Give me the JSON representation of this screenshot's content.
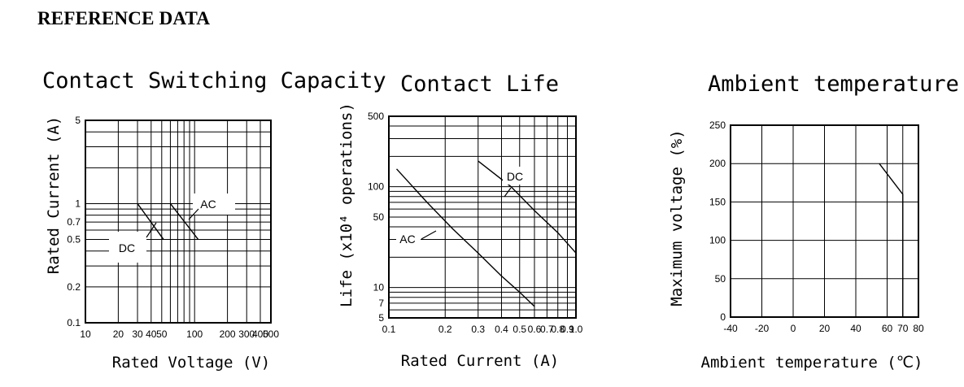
{
  "page": {
    "heading": "REFERENCE DATA"
  },
  "chart_data": [
    {
      "type": "line",
      "title": "Contact Switching Capacity",
      "xlabel": "Rated Voltage   (V)",
      "ylabel": "Rated Current  (A)",
      "xscale": "log",
      "yscale": "log",
      "xlim": [
        10,
        500
      ],
      "ylim": [
        0.1,
        5
      ],
      "x_ticks": [
        10,
        20,
        30,
        40,
        50,
        100,
        200,
        300,
        400,
        500
      ],
      "x_tick_labels": [
        "10",
        "20",
        "30",
        "40",
        "50",
        "100",
        "200",
        "300",
        "400",
        "500"
      ],
      "y_ticks": [
        0.1,
        0.2,
        0.5,
        0.7,
        1,
        5
      ],
      "y_tick_labels": [
        "0.1",
        "0.2",
        "0.5",
        "0.7",
        "1",
        "5"
      ],
      "grid": true,
      "series": [
        {
          "name": "DC",
          "x": [
            30,
            52
          ],
          "y": [
            1,
            0.5
          ]
        },
        {
          "name": "AC",
          "x": [
            60,
            108
          ],
          "y": [
            1,
            0.5
          ]
        }
      ]
    },
    {
      "type": "line",
      "title": "Contact Life",
      "xlabel": "Rated Current   (A)",
      "ylabel": "Life  (x10⁴ operations)",
      "xscale": "log",
      "yscale": "log",
      "xlim": [
        0.1,
        1
      ],
      "ylim": [
        5,
        500
      ],
      "x_ticks": [
        0.1,
        0.2,
        0.3,
        0.4,
        0.5,
        0.6,
        0.7,
        0.8,
        0.9,
        1
      ],
      "x_tick_labels": [
        "0.1",
        "0.2",
        "0.3",
        "0.4",
        "0.5",
        "0.6",
        "0.7",
        "0.8",
        "0.9",
        "1.0"
      ],
      "y_ticks": [
        5,
        7,
        10,
        50,
        100,
        500
      ],
      "y_tick_labels": [
        "5",
        "7",
        "10",
        "50",
        "100",
        "500"
      ],
      "grid": true,
      "series": [
        {
          "name": "AC",
          "x": [
            0.11,
            0.16,
            0.22,
            0.3,
            0.4,
            0.5,
            0.6
          ],
          "y": [
            150,
            70,
            38,
            22,
            13,
            9,
            6.5
          ]
        },
        {
          "name": "DC",
          "x": [
            0.3,
            0.45,
            0.6,
            0.8,
            1.0
          ],
          "y": [
            180,
            100,
            58,
            35,
            22
          ]
        }
      ]
    },
    {
      "type": "line",
      "title": "Ambient temperature",
      "xlabel": "Ambient temperature (℃)",
      "ylabel": "Maximum voltage  (%)",
      "xlim": [
        -40,
        80
      ],
      "ylim": [
        0,
        250
      ],
      "x_ticks": [
        -40,
        -20,
        0,
        20,
        40,
        60,
        70,
        80
      ],
      "x_tick_labels": [
        "-40",
        "-20",
        "0",
        "20",
        "40",
        "60",
        "70",
        "80"
      ],
      "y_ticks": [
        0,
        50,
        100,
        150,
        200,
        250
      ],
      "y_tick_labels": [
        "0",
        "50",
        "100",
        "150",
        "200",
        "250"
      ],
      "grid": true,
      "series": [
        {
          "x": [
            55,
            70,
            70
          ],
          "y": [
            200,
            160,
            0
          ]
        }
      ]
    }
  ]
}
